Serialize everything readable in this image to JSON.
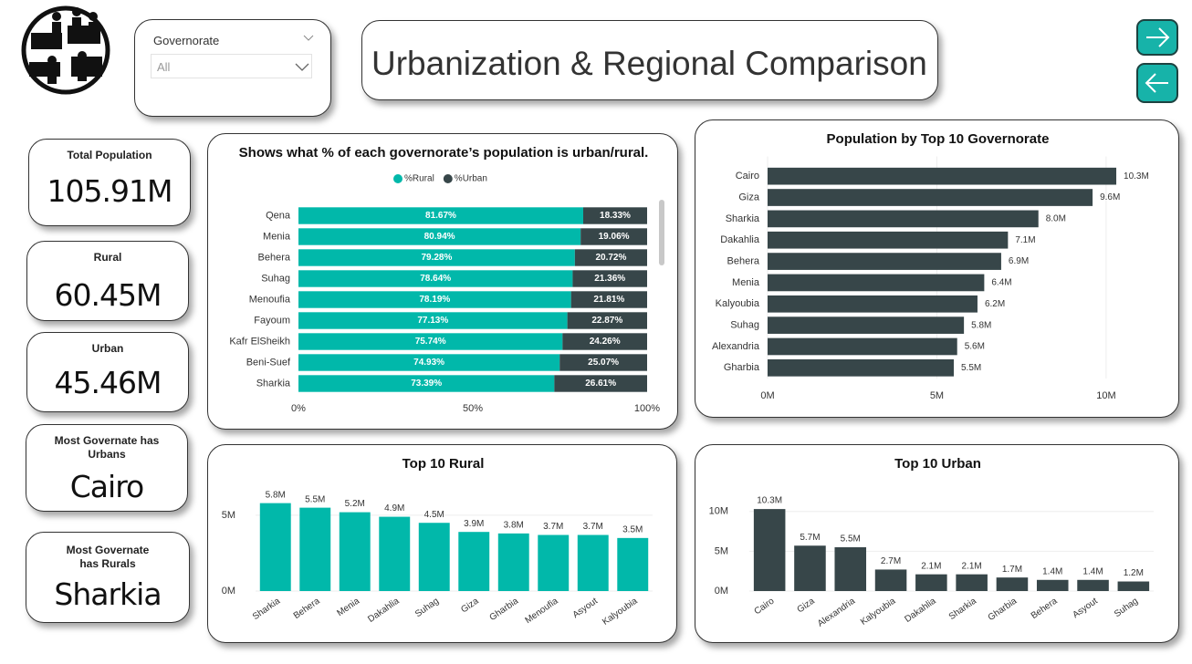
{
  "header": {
    "title": "Urbanization & Regional Comparison"
  },
  "slicer": {
    "label": "Governorate",
    "value": "All"
  },
  "cards": [
    {
      "label": "Total Population",
      "value": "105.91M"
    },
    {
      "label": "Rural",
      "value": "60.45M"
    },
    {
      "label": "Urban",
      "value": "45.46M"
    },
    {
      "label": "Most Governate has Urbans",
      "value": "Cairo"
    },
    {
      "label": "Most Governate has Rurals",
      "value": "Sharkia"
    }
  ],
  "chart_data": [
    {
      "type": "bar",
      "orientation": "horizontal",
      "stacked": true,
      "grid": false,
      "title": "Shows what % of each governorate’s population is urban/rural.",
      "categories": [
        "Qena",
        "Menia",
        "Behera",
        "Suhag",
        "Menoufia",
        "Fayoum",
        "Kafr ElSheikh",
        "Beni-Suef",
        "Sharkia"
      ],
      "series": [
        {
          "name": "%Rural",
          "color": "#01b8aa",
          "values": [
            81.67,
            80.94,
            79.28,
            78.64,
            78.19,
            77.13,
            75.74,
            74.93,
            73.39
          ],
          "value_labels": [
            "81.67%",
            "80.94%",
            "79.28%",
            "78.64%",
            "78.19%",
            "77.13%",
            "75.74%",
            "74.93%",
            "73.39%"
          ]
        },
        {
          "name": "%Urban",
          "color": "#374649",
          "values": [
            18.33,
            19.06,
            20.72,
            21.36,
            21.81,
            22.87,
            24.26,
            25.07,
            26.61
          ],
          "value_labels": [
            "18.33%",
            "19.06%",
            "20.72%",
            "21.36%",
            "21.81%",
            "22.87%",
            "24.26%",
            "25.07%",
            "26.61%"
          ]
        }
      ],
      "xlim": [
        0,
        100
      ],
      "xticks": [
        {
          "value": 0,
          "label": "0%"
        },
        {
          "value": 50,
          "label": "50%"
        },
        {
          "value": 100,
          "label": "100%"
        }
      ]
    },
    {
      "type": "bar",
      "orientation": "horizontal",
      "stacked": false,
      "grid": true,
      "title": "Population by Top 10 Governorate",
      "color": "#374649",
      "categories": [
        "Cairo",
        "Giza",
        "Sharkia",
        "Dakahlia",
        "Behera",
        "Menia",
        "Kalyoubia",
        "Suhag",
        "Alexandria",
        "Gharbia"
      ],
      "values": [
        10300000,
        9600000,
        8000000,
        7100000,
        6900000,
        6400000,
        6200000,
        5800000,
        5600000,
        5500000
      ],
      "value_labels": [
        "10.3M",
        "9.6M",
        "8.0M",
        "7.1M",
        "6.9M",
        "6.4M",
        "6.2M",
        "5.8M",
        "5.6M",
        "5.5M"
      ],
      "xlim": [
        0,
        11000000
      ],
      "xticks": [
        {
          "value": 0,
          "label": "0M"
        },
        {
          "value": 5000000,
          "label": "5M"
        },
        {
          "value": 10000000,
          "label": "10M"
        }
      ]
    },
    {
      "type": "bar",
      "orientation": "vertical",
      "stacked": false,
      "grid": true,
      "title": "Top 10 Rural",
      "color": "#01b8aa",
      "categories": [
        "Sharkia",
        "Behera",
        "Menia",
        "Dakahlia",
        "Suhag",
        "Giza",
        "Gharbia",
        "Menoufia",
        "Asyout",
        "Kalyoubia"
      ],
      "values": [
        5800000,
        5500000,
        5200000,
        4900000,
        4500000,
        3900000,
        3800000,
        3700000,
        3700000,
        3500000
      ],
      "value_labels": [
        "5.8M",
        "5.5M",
        "5.2M",
        "4.9M",
        "4.5M",
        "3.9M",
        "3.8M",
        "3.7M",
        "3.7M",
        "3.5M"
      ],
      "ylim": [
        0,
        6500000
      ],
      "yticks": [
        {
          "value": 0,
          "label": "0M"
        },
        {
          "value": 5000000,
          "label": "5M"
        }
      ]
    },
    {
      "type": "bar",
      "orientation": "vertical",
      "stacked": false,
      "grid": true,
      "title": "Top 10 Urban",
      "color": "#374649",
      "categories": [
        "Cairo",
        "Giza",
        "Alexandria",
        "Kalyoubia",
        "Dakahlia",
        "Sharkia",
        "Gharbia",
        "Behera",
        "Asyout",
        "Suhag"
      ],
      "values": [
        10300000,
        5700000,
        5500000,
        2700000,
        2100000,
        2100000,
        1700000,
        1400000,
        1400000,
        1200000
      ],
      "value_labels": [
        "10.3M",
        "5.7M",
        "5.5M",
        "2.7M",
        "2.1M",
        "2.1M",
        "1.7M",
        "1.4M",
        "1.4M",
        "1.2M"
      ],
      "ylim": [
        0,
        11000000
      ],
      "yticks": [
        {
          "value": 0,
          "label": "0M"
        },
        {
          "value": 5000000,
          "label": "5M"
        },
        {
          "value": 10000000,
          "label": "10M"
        }
      ]
    }
  ]
}
